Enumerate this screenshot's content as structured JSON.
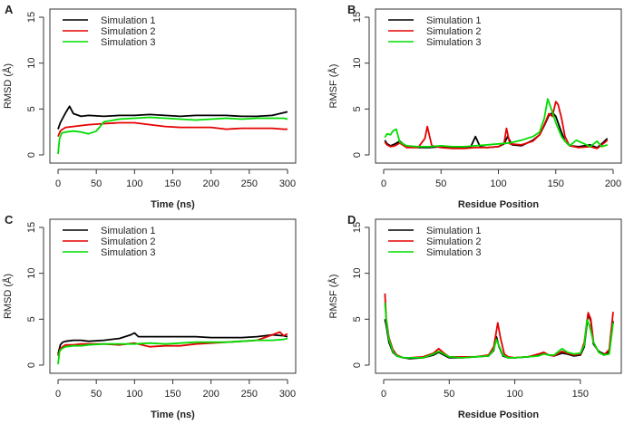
{
  "colors": {
    "Simulation 1": "#000000",
    "Simulation 2": "#e60000",
    "Simulation 3": "#00dd00"
  },
  "chart_data": [
    {
      "panel": "A",
      "type": "line",
      "xlabel": "Time (ns)",
      "ylabel": "RMSD (Å)",
      "xlim": [
        0,
        300
      ],
      "ylim": [
        0,
        15
      ],
      "xticks": [
        0,
        50,
        100,
        150,
        200,
        250,
        300
      ],
      "yticks": [
        0,
        5,
        10,
        15
      ],
      "legend": "top-left",
      "series": [
        {
          "name": "Simulation 1",
          "x": [
            0,
            3,
            6,
            10,
            15,
            20,
            30,
            40,
            60,
            80,
            100,
            120,
            140,
            160,
            180,
            200,
            220,
            240,
            260,
            280,
            295,
            300
          ],
          "y": [
            2.8,
            3.5,
            4.0,
            4.6,
            5.3,
            4.5,
            4.2,
            4.3,
            4.2,
            4.3,
            4.3,
            4.4,
            4.3,
            4.2,
            4.3,
            4.3,
            4.3,
            4.2,
            4.2,
            4.3,
            4.6,
            4.7
          ]
        },
        {
          "name": "Simulation 2",
          "x": [
            0,
            3,
            6,
            10,
            20,
            30,
            40,
            60,
            80,
            100,
            120,
            140,
            160,
            180,
            200,
            220,
            240,
            260,
            280,
            295,
            300
          ],
          "y": [
            2.0,
            2.6,
            2.8,
            3.0,
            3.1,
            3.2,
            3.3,
            3.4,
            3.5,
            3.5,
            3.3,
            3.1,
            3.0,
            3.0,
            3.0,
            2.8,
            2.9,
            2.9,
            2.9,
            2.8,
            2.8
          ]
        },
        {
          "name": "Simulation 3",
          "x": [
            0,
            2,
            5,
            10,
            20,
            30,
            40,
            50,
            60,
            80,
            100,
            120,
            140,
            160,
            180,
            200,
            220,
            240,
            260,
            280,
            295,
            300
          ],
          "y": [
            0.1,
            1.8,
            2.4,
            2.5,
            2.6,
            2.5,
            2.3,
            2.6,
            3.6,
            3.9,
            4.0,
            4.1,
            4.0,
            3.9,
            3.8,
            3.9,
            4.0,
            3.9,
            4.0,
            4.0,
            4.0,
            3.9
          ]
        }
      ]
    },
    {
      "panel": "B",
      "type": "line",
      "xlabel": "Residue Position",
      "ylabel": "RMSF (Å)",
      "xlim": [
        0,
        200
      ],
      "ylim": [
        0,
        15
      ],
      "xticks": [
        0,
        50,
        100,
        150,
        200
      ],
      "yticks": [
        0,
        5,
        10,
        15
      ],
      "legend": "top-left",
      "series": [
        {
          "name": "Simulation 1",
          "x": [
            1,
            3,
            6,
            10,
            14,
            20,
            30,
            40,
            50,
            60,
            70,
            76,
            80,
            84,
            90,
            100,
            105,
            108,
            112,
            120,
            130,
            136,
            140,
            144,
            147,
            150,
            154,
            158,
            162,
            170,
            180,
            186,
            190,
            195
          ],
          "y": [
            1.6,
            1.2,
            1.0,
            1.2,
            1.5,
            0.9,
            0.8,
            0.8,
            0.9,
            0.8,
            0.8,
            0.9,
            2.0,
            0.9,
            0.8,
            0.9,
            1.2,
            2.0,
            1.1,
            1.0,
            1.6,
            2.2,
            3.2,
            4.3,
            4.6,
            4.2,
            2.8,
            1.5,
            1.0,
            0.9,
            1.1,
            0.8,
            1.2,
            1.8
          ]
        },
        {
          "name": "Simulation 2",
          "x": [
            1,
            3,
            6,
            10,
            14,
            20,
            30,
            36,
            38,
            42,
            50,
            60,
            70,
            80,
            90,
            100,
            105,
            107,
            110,
            120,
            130,
            136,
            140,
            144,
            147,
            150,
            152,
            155,
            158,
            162,
            170,
            180,
            186,
            190,
            195
          ],
          "y": [
            1.4,
            1.1,
            0.9,
            1.0,
            1.3,
            0.8,
            0.8,
            1.8,
            3.1,
            1.0,
            0.8,
            0.7,
            0.7,
            0.8,
            0.8,
            0.9,
            1.3,
            2.9,
            1.2,
            1.1,
            1.5,
            2.2,
            3.3,
            4.5,
            4.2,
            5.8,
            5.5,
            4.0,
            2.0,
            1.0,
            0.8,
            0.9,
            0.7,
            1.1,
            1.6
          ]
        },
        {
          "name": "Simulation 3",
          "x": [
            1,
            3,
            6,
            8,
            11,
            14,
            20,
            30,
            40,
            50,
            60,
            70,
            80,
            90,
            100,
            110,
            120,
            130,
            136,
            140,
            143,
            145,
            148,
            150,
            155,
            158,
            162,
            168,
            175,
            180,
            186,
            190,
            195
          ],
          "y": [
            1.9,
            2.3,
            2.2,
            2.6,
            2.8,
            1.4,
            1.0,
            0.9,
            0.9,
            1.0,
            0.9,
            0.9,
            1.0,
            1.1,
            1.2,
            1.3,
            1.6,
            2.0,
            2.5,
            4.0,
            6.1,
            5.4,
            4.3,
            3.5,
            2.0,
            1.5,
            1.0,
            1.6,
            1.2,
            0.9,
            1.5,
            0.9,
            1.1
          ]
        }
      ]
    },
    {
      "panel": "C",
      "type": "line",
      "xlabel": "Time (ns)",
      "ylabel": "RMSD (Å)",
      "xlim": [
        0,
        300
      ],
      "ylim": [
        0,
        15
      ],
      "xticks": [
        0,
        50,
        100,
        150,
        200,
        250,
        300
      ],
      "yticks": [
        0,
        5,
        10,
        15
      ],
      "legend": "top-left",
      "series": [
        {
          "name": "Simulation 1",
          "x": [
            0,
            3,
            6,
            10,
            20,
            30,
            40,
            60,
            80,
            95,
            100,
            105,
            120,
            140,
            160,
            180,
            200,
            220,
            240,
            260,
            280,
            295,
            300
          ],
          "y": [
            1.2,
            2.2,
            2.5,
            2.6,
            2.7,
            2.7,
            2.6,
            2.7,
            2.9,
            3.3,
            3.5,
            3.1,
            3.1,
            3.1,
            3.1,
            3.1,
            3.0,
            3.0,
            3.0,
            3.1,
            3.3,
            3.2,
            3.1
          ]
        },
        {
          "name": "Simulation 2",
          "x": [
            0,
            3,
            6,
            10,
            20,
            30,
            40,
            60,
            80,
            100,
            120,
            140,
            160,
            180,
            200,
            220,
            240,
            260,
            280,
            290,
            295,
            300
          ],
          "y": [
            1.0,
            1.8,
            2.0,
            2.2,
            2.2,
            2.3,
            2.3,
            2.3,
            2.2,
            2.4,
            2.0,
            2.1,
            2.1,
            2.3,
            2.4,
            2.5,
            2.6,
            2.7,
            3.3,
            3.6,
            3.2,
            3.4
          ]
        },
        {
          "name": "Simulation 3",
          "x": [
            0,
            2,
            5,
            10,
            20,
            30,
            40,
            60,
            80,
            100,
            120,
            140,
            160,
            180,
            200,
            220,
            240,
            260,
            280,
            295,
            300
          ],
          "y": [
            0.1,
            1.5,
            1.8,
            2.0,
            2.1,
            2.1,
            2.2,
            2.3,
            2.3,
            2.3,
            2.4,
            2.3,
            2.4,
            2.5,
            2.5,
            2.5,
            2.6,
            2.7,
            2.7,
            2.8,
            2.9
          ]
        }
      ]
    },
    {
      "panel": "D",
      "type": "line",
      "xlabel": "Residue Position",
      "ylabel": "RMSF (Å)",
      "xlim": [
        0,
        175
      ],
      "ylim": [
        0,
        15
      ],
      "xticks": [
        0,
        50,
        100,
        150
      ],
      "yticks": [
        0,
        5,
        10,
        15
      ],
      "legend": "top-left",
      "series": [
        {
          "name": "Simulation 1",
          "x": [
            1,
            2,
            4,
            7,
            10,
            15,
            20,
            30,
            38,
            42,
            46,
            50,
            60,
            70,
            80,
            84,
            86,
            88,
            91,
            95,
            100,
            110,
            118,
            122,
            126,
            130,
            136,
            140,
            145,
            150,
            153,
            156,
            158,
            160,
            164,
            168,
            172,
            175
          ],
          "y": [
            5.0,
            4.3,
            2.5,
            1.4,
            1.0,
            0.8,
            0.7,
            0.8,
            1.1,
            1.4,
            1.1,
            0.8,
            0.8,
            0.9,
            1.0,
            1.6,
            3.1,
            2.0,
            1.0,
            0.8,
            0.8,
            0.9,
            1.1,
            1.3,
            1.1,
            1.0,
            1.3,
            1.2,
            1.0,
            1.1,
            2.0,
            5.6,
            4.8,
            2.3,
            1.5,
            1.2,
            1.4,
            4.8
          ]
        },
        {
          "name": "Simulation 2",
          "x": [
            1,
            2,
            4,
            7,
            10,
            15,
            20,
            30,
            38,
            42,
            46,
            50,
            60,
            70,
            80,
            84,
            87,
            89,
            92,
            95,
            100,
            110,
            118,
            122,
            126,
            130,
            136,
            140,
            145,
            150,
            153,
            156,
            158,
            160,
            164,
            168,
            172,
            175
          ],
          "y": [
            7.8,
            5.0,
            3.0,
            1.7,
            1.1,
            0.8,
            0.8,
            0.9,
            1.3,
            1.8,
            1.3,
            0.9,
            0.9,
            0.9,
            1.1,
            2.0,
            4.6,
            3.0,
            1.2,
            0.9,
            0.8,
            0.9,
            1.2,
            1.4,
            1.1,
            1.0,
            1.5,
            1.3,
            1.1,
            1.2,
            2.5,
            5.7,
            5.0,
            2.5,
            1.4,
            1.1,
            1.7,
            5.8
          ]
        },
        {
          "name": "Simulation 3",
          "x": [
            1,
            2,
            4,
            7,
            10,
            15,
            20,
            30,
            38,
            42,
            46,
            50,
            60,
            70,
            80,
            84,
            86,
            88,
            91,
            95,
            100,
            110,
            118,
            122,
            126,
            130,
            136,
            140,
            145,
            150,
            153,
            155,
            157,
            160,
            164,
            168,
            172,
            175
          ],
          "y": [
            6.8,
            4.8,
            2.8,
            1.5,
            1.0,
            0.8,
            0.8,
            0.8,
            1.2,
            1.5,
            1.2,
            0.9,
            0.8,
            0.9,
            1.0,
            1.7,
            2.8,
            2.1,
            1.1,
            0.8,
            0.8,
            0.9,
            1.0,
            1.2,
            1.1,
            1.1,
            1.8,
            1.4,
            1.2,
            1.3,
            2.2,
            4.9,
            4.3,
            2.5,
            1.4,
            1.1,
            1.2,
            4.6
          ]
        }
      ]
    }
  ]
}
